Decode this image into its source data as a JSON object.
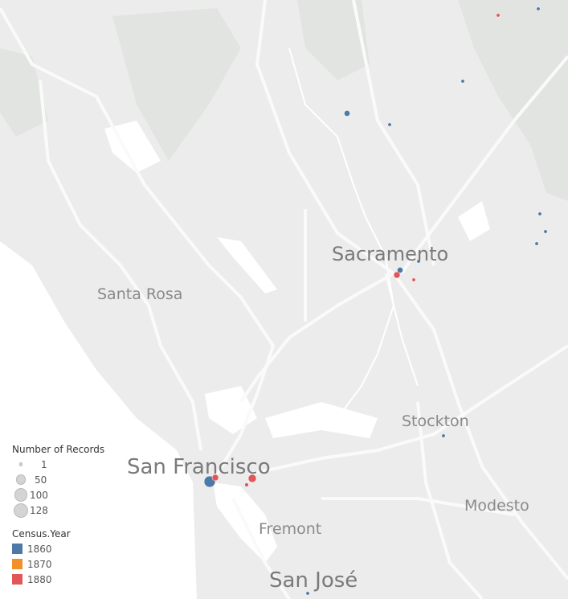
{
  "cities": [
    {
      "name": "Sacramento",
      "size": 24
    },
    {
      "name": "Santa Rosa",
      "size": 19
    },
    {
      "name": "Stockton",
      "size": 19
    },
    {
      "name": "San Francisco",
      "size": 26
    },
    {
      "name": "Modesto",
      "size": 19
    },
    {
      "name": "Fremont",
      "size": 19
    },
    {
      "name": "San José",
      "size": 26
    }
  ],
  "size_legend": {
    "title": "Number of Records",
    "items": [
      {
        "label": "1",
        "value": 1
      },
      {
        "label": "50",
        "value": 50
      },
      {
        "label": "100",
        "value": 100
      },
      {
        "label": "128",
        "value": 128
      }
    ]
  },
  "color_legend": {
    "title": "Census.Year",
    "items": [
      {
        "label": "1860",
        "color": "#4e79a7"
      },
      {
        "label": "1870",
        "color": "#f28e2b"
      },
      {
        "label": "1880",
        "color": "#e15759"
      }
    ]
  },
  "markers": [
    {
      "year": "1880",
      "records": 1
    },
    {
      "year": "1860",
      "records": 1
    },
    {
      "year": "1860",
      "records": 1
    },
    {
      "year": "1860",
      "records": 10
    },
    {
      "year": "1860",
      "records": 1
    },
    {
      "year": "1860",
      "records": 1
    },
    {
      "year": "1860",
      "records": 1
    },
    {
      "year": "1860",
      "records": 1
    },
    {
      "year": "1860",
      "records": 1
    },
    {
      "year": "1860",
      "records": 10
    },
    {
      "year": "1880",
      "records": 14
    },
    {
      "year": "1880",
      "records": 1
    },
    {
      "year": "1860",
      "records": 1
    },
    {
      "year": "1860",
      "records": 69
    },
    {
      "year": "1880",
      "records": 14
    },
    {
      "year": "1880",
      "records": 28
    },
    {
      "year": "1880",
      "records": 2
    },
    {
      "year": "1860",
      "records": 1
    }
  ]
}
